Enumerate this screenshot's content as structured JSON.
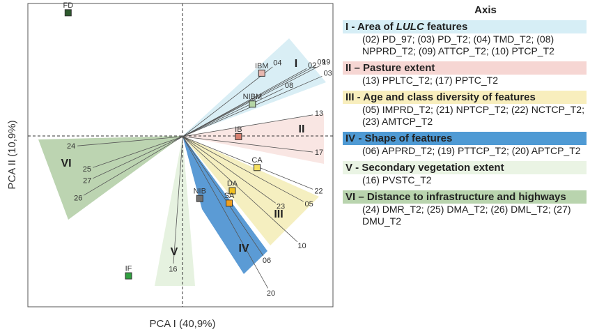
{
  "chart_data": {
    "type": "biplot",
    "xlabel": "PCA I (40,9%)",
    "ylabel": "PCA II (10,9%)",
    "xlim": [
      -1,
      0.97
    ],
    "ylim": [
      -1.1,
      0.86
    ],
    "points": [
      {
        "name": "FD",
        "x": -0.74,
        "y": 0.8,
        "color": "#2d5a2d"
      },
      {
        "name": "IBM",
        "x": 0.51,
        "y": 0.41,
        "color": "#e8b8b0"
      },
      {
        "name": "NIBM",
        "x": 0.45,
        "y": 0.21,
        "color": "#b5d5a5"
      },
      {
        "name": "IB",
        "x": 0.36,
        "y": 0.0,
        "color": "#d88070"
      },
      {
        "name": "CA",
        "x": 0.48,
        "y": -0.2,
        "color": "#f5e060"
      },
      {
        "name": "DA",
        "x": 0.32,
        "y": -0.35,
        "color": "#f0c020"
      },
      {
        "name": "SA",
        "x": 0.3,
        "y": -0.43,
        "color": "#f0a020"
      },
      {
        "name": "NIB",
        "x": 0.11,
        "y": -0.4,
        "color": "#707070"
      },
      {
        "name": "IF",
        "x": -0.35,
        "y": -0.9,
        "color": "#30a040"
      }
    ],
    "vectors": [
      {
        "label": "04",
        "x": 0.58,
        "y": 0.45
      },
      {
        "label": "02",
        "x": 0.8,
        "y": 0.44
      },
      {
        "label": "09",
        "x": 0.86,
        "y": 0.46
      },
      {
        "label": "19",
        "x": 0.89,
        "y": 0.46
      },
      {
        "label": "03",
        "x": 0.9,
        "y": 0.39
      },
      {
        "label": "08",
        "x": 0.65,
        "y": 0.31
      },
      {
        "label": "13",
        "x": 0.84,
        "y": 0.14
      },
      {
        "label": "17",
        "x": 0.84,
        "y": -0.1
      },
      {
        "label": "22",
        "x": 0.84,
        "y": -0.34
      },
      {
        "label": "05",
        "x": 0.78,
        "y": -0.42
      },
      {
        "label": "23",
        "x": 0.6,
        "y": -0.43
      },
      {
        "label": "10",
        "x": 0.74,
        "y": -0.68
      },
      {
        "label": "06",
        "x": 0.52,
        "y": -0.77
      },
      {
        "label": "20",
        "x": 0.55,
        "y": -0.98
      },
      {
        "label": "16",
        "x": -0.06,
        "y": -0.82
      },
      {
        "label": "24",
        "x": -0.68,
        "y": -0.06
      },
      {
        "label": "25",
        "x": -0.58,
        "y": -0.2
      },
      {
        "label": "27",
        "x": -0.58,
        "y": -0.27
      },
      {
        "label": "26",
        "x": -0.64,
        "y": -0.38
      }
    ],
    "sector_labels": [
      "I",
      "II",
      "III",
      "IV",
      "V",
      "VI"
    ],
    "legend": {
      "title": "Axis",
      "items": [
        {
          "header": [
            "I - Area of ",
            "LULC",
            " features"
          ],
          "text": "(02) PD_97; (03) PD_T2; (04) TMD_T2; (08) NPPRD_T2; (09) ATTCP_T2; (10) PTCP_T2",
          "color": "#d6eef6"
        },
        {
          "header": [
            "II – Pasture extent"
          ],
          "text": "(13) PPLTC_T2; (17) PPTC_T2",
          "color": "#f6d6d3"
        },
        {
          "header": [
            "III - Age and class diversity of features"
          ],
          "text": "(05) IMPRD_T2; (21) NPTCP_T2; (22) NCTCP_T2; (23) AMTCP_T2",
          "color": "#f8eebd"
        },
        {
          "header": [
            "IV - Shape of features"
          ],
          "text": "(06) APPRD_T2; (19) PTTCP_T2; (20) APTCP_T2",
          "color": "#4f9ad4"
        },
        {
          "header": [
            "V - Secondary vegetation extent"
          ],
          "text": "(16) PVSTC_T2",
          "color": "#eaf4e4"
        },
        {
          "header": [
            "VI – Distance to infrastructure and highways"
          ],
          "text": "(24) DMR_T2; (25) DMA_T2; (26) DML_T2; (27) DMU_T2",
          "color": "#b9d4ae"
        }
      ]
    }
  }
}
